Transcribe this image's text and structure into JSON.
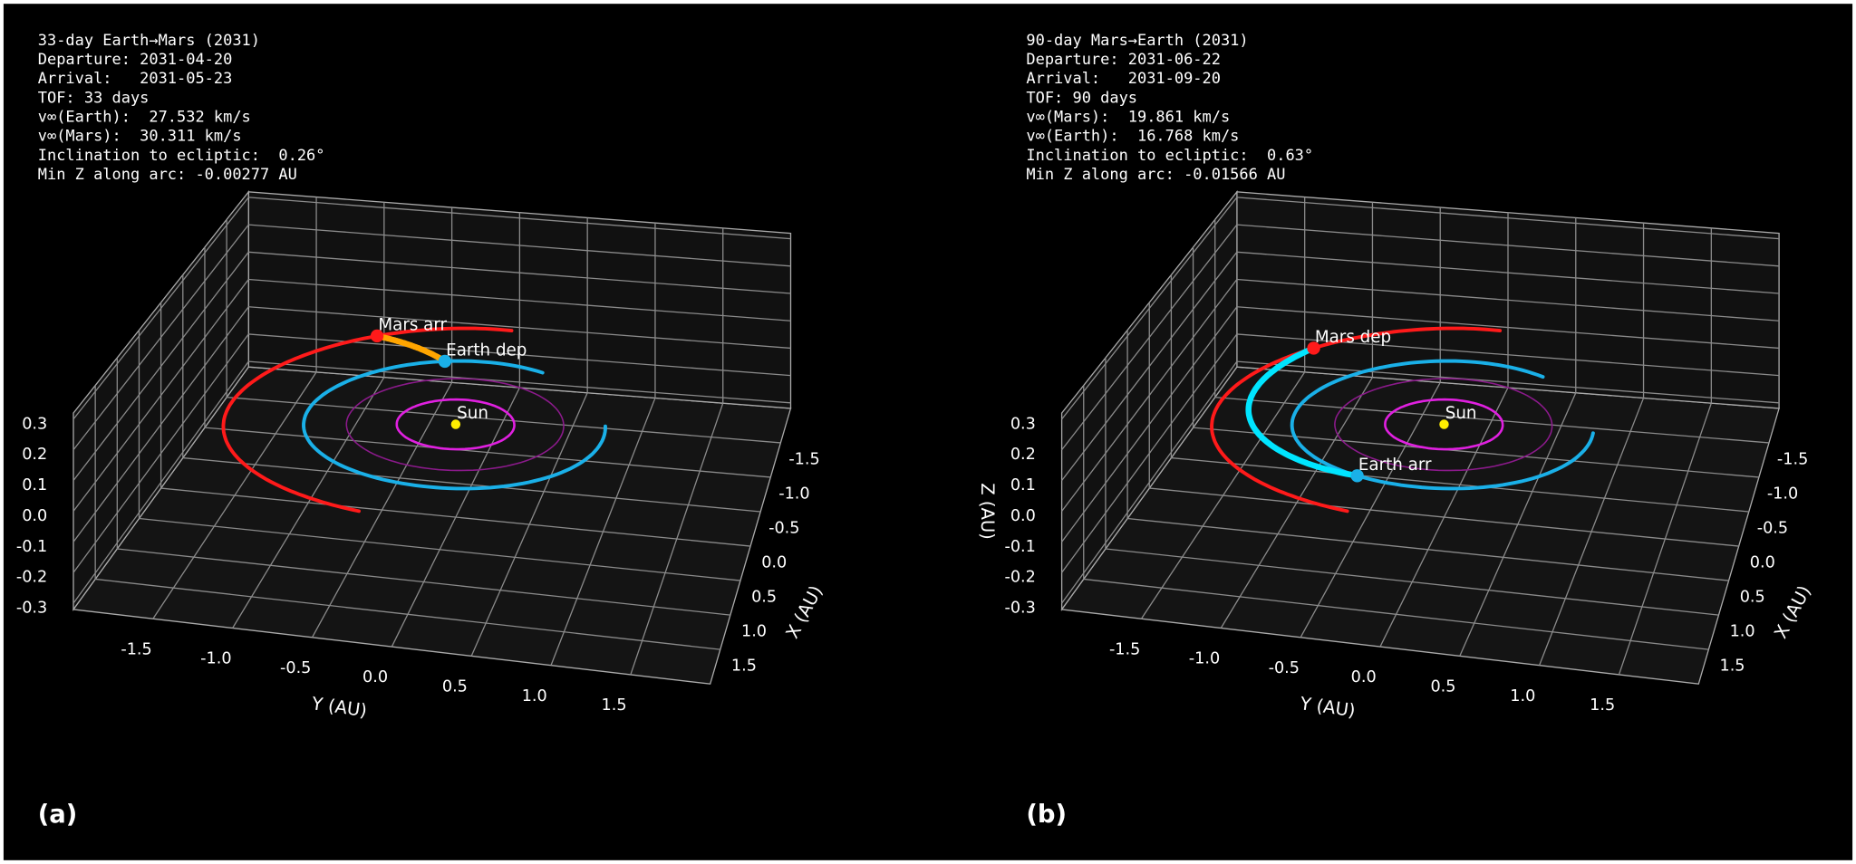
{
  "chart_data": [
    {
      "type": "orbit3d",
      "panel_label": "(a)",
      "info": [
        "33-day Earth→Mars (2031)",
        "Departure: 2031-04-20",
        "Arrival:   2031-05-23",
        "TOF: 33 days",
        "v∞(Earth):  27.532 km/s",
        "v∞(Mars):  30.311 km/s",
        "Inclination to ecliptic:  0.26°",
        "Min Z along arc: -0.00277 AU"
      ],
      "xlabel": "X (AU)",
      "ylabel": "Y (AU)",
      "xlim": [
        -2,
        2
      ],
      "ylim": [
        -2,
        2
      ],
      "zlim": [
        -0.32,
        0.32
      ],
      "xticks": [
        -1.5,
        {
          "value": -1,
          "label": "-1.0"
        },
        -0.5,
        {
          "value": 0,
          "label": "0.0"
        },
        0.5,
        {
          "value": 1,
          "label": "1.0"
        },
        1.5
      ],
      "yticks": [
        -1.5,
        {
          "value": -1,
          "label": "-1.0"
        },
        -0.5,
        {
          "value": 0,
          "label": "0.0"
        },
        0.5,
        {
          "value": 1,
          "label": "1.0"
        },
        1.5
      ],
      "zticks": [
        0.3,
        0.2,
        0.1,
        {
          "value": 0,
          "label": "0.0"
        },
        -0.1,
        -0.2,
        -0.3
      ],
      "grid": true,
      "orbits": [
        {
          "color": "#e020e0",
          "r": 0.39,
          "theta_deg": [
            0,
            360
          ]
        },
        {
          "color": "#8b1a8b",
          "r": 0.72,
          "theta_deg": [
            0,
            360
          ]
        },
        {
          "color": "#1ab0e8",
          "r": 1.0,
          "theta_deg": [
            156,
            461
          ]
        },
        {
          "color": "#ff1a1a",
          "r": 1.52,
          "theta_deg": [
            178,
            348
          ]
        }
      ],
      "transfer": {
        "color": "#ffa500",
        "r": [
          1.0,
          1.52
        ],
        "theta_deg": [
          197,
          214
        ]
      },
      "bodies": [
        {
          "label": "Sun",
          "color": "#ffee00",
          "r": 0,
          "theta_deg": 0
        },
        {
          "label": "Earth dep",
          "color": "#1ab0e8",
          "r": 1.0,
          "theta_deg": 197
        },
        {
          "label": "Mars arr",
          "color": "#ff1a1a",
          "r": 1.52,
          "theta_deg": 214
        }
      ]
    },
    {
      "type": "orbit3d",
      "panel_label": "(b)",
      "info": [
        "90-day Mars→Earth (2031)",
        "Departure: 2031-06-22",
        "Arrival:   2031-09-20",
        "TOF: 90 days",
        "v∞(Mars):  19.861 km/s",
        "v∞(Earth):  16.768 km/s",
        "Inclination to ecliptic:  0.63°",
        "Min Z along arc: -0.01566 AU"
      ],
      "xlabel": "X (AU)",
      "ylabel": "Y (AU)",
      "zlabel": "Z (AU)",
      "xlim": [
        -2,
        2
      ],
      "ylim": [
        -2,
        2
      ],
      "zlim": [
        -0.32,
        0.32
      ],
      "xticks": [
        -1.5,
        {
          "value": -1,
          "label": "-1.0"
        },
        -0.5,
        {
          "value": 0,
          "label": "0.0"
        },
        0.5,
        {
          "value": 1,
          "label": "1.0"
        },
        1.5
      ],
      "yticks": [
        -1.5,
        {
          "value": -1,
          "label": "-1.0"
        },
        -0.5,
        {
          "value": 0,
          "label": "0.0"
        },
        0.5,
        {
          "value": 1,
          "label": "1.0"
        },
        1.5
      ],
      "zticks": [
        0.3,
        0.2,
        0.1,
        {
          "value": 0,
          "label": "0.0"
        },
        -0.1,
        -0.2,
        -0.3
      ],
      "grid": true,
      "orbits": [
        {
          "color": "#e020e0",
          "r": 0.39,
          "theta_deg": [
            0,
            360
          ]
        },
        {
          "color": "#8b1a8b",
          "r": 0.72,
          "theta_deg": [
            0,
            360
          ]
        },
        {
          "color": "#1ab0e8",
          "r": 1.0,
          "theta_deg": [
            150,
            455
          ]
        },
        {
          "color": "#ff1a1a",
          "r": 1.52,
          "theta_deg": [
            178,
            348
          ]
        }
      ],
      "transfer": {
        "color": "#00e5ff",
        "r": [
          1.52,
          1.0
        ],
        "theta_deg": [
          229,
          338
        ]
      },
      "bodies": [
        {
          "label": "Sun",
          "color": "#ffee00",
          "r": 0,
          "theta_deg": 0
        },
        {
          "label": "Mars dep",
          "color": "#ff1a1a",
          "r": 1.52,
          "theta_deg": 229
        },
        {
          "label": "Earth arr",
          "color": "#1ab0e8",
          "r": 1.0,
          "theta_deg": 338
        }
      ]
    }
  ]
}
